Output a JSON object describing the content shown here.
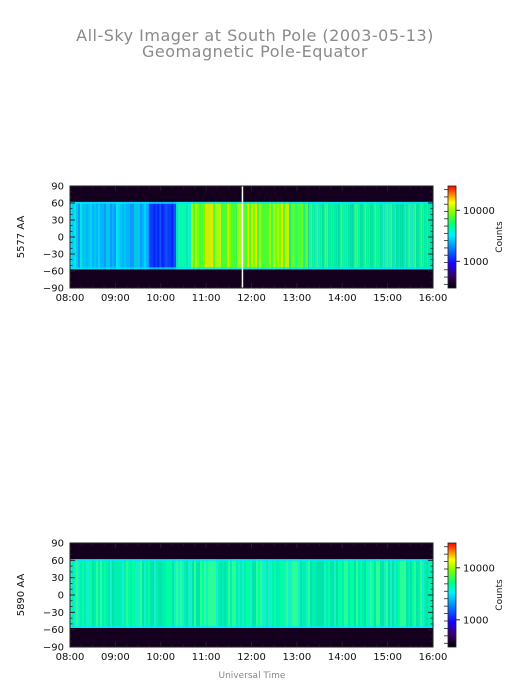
{
  "title": "All-Sky Imager at South Pole (2003-05-13)",
  "subtitle": "Geomagnetic Pole-Equator",
  "xlabel": "Universal Time",
  "colorbar_label": "Counts",
  "chart_data": [
    {
      "type": "heatmap",
      "ylabel": "5577 AA",
      "x_ticks": [
        "08:00",
        "09:00",
        "10:00",
        "11:00",
        "12:00",
        "13:00",
        "14:00",
        "15:00",
        "16:00"
      ],
      "y_ticks": [
        90,
        60,
        30,
        0,
        -30,
        -60,
        -90
      ],
      "xlim": [
        "08:00",
        "16:00"
      ],
      "ylim": [
        -90,
        90
      ],
      "colorbar_ticks": [
        1000,
        10000
      ],
      "colorbar_scale": "log",
      "data_lat_range": [
        -57,
        62
      ],
      "segments": [
        {
          "start": "08:00",
          "end": "09:45",
          "level": "cyan-blue"
        },
        {
          "start": "09:45",
          "end": "10:20",
          "level": "blue"
        },
        {
          "start": "10:20",
          "end": "10:40",
          "level": "cyan-green"
        },
        {
          "start": "10:40",
          "end": "12:50",
          "level": "green-yellow"
        },
        {
          "start": "12:50",
          "end": "13:15",
          "level": "green"
        },
        {
          "start": "13:15",
          "end": "16:00",
          "level": "cyan-green"
        }
      ],
      "gap_time": "11:47"
    },
    {
      "type": "heatmap",
      "ylabel": "5890 AA",
      "x_ticks": [
        "08:00",
        "09:00",
        "10:00",
        "11:00",
        "12:00",
        "13:00",
        "14:00",
        "15:00",
        "16:00"
      ],
      "y_ticks": [
        90,
        60,
        30,
        0,
        -30,
        -60,
        -90
      ],
      "xlim": [
        "08:00",
        "16:00"
      ],
      "ylim": [
        -90,
        90
      ],
      "colorbar_ticks": [
        1000,
        10000
      ],
      "colorbar_scale": "log",
      "data_lat_range": [
        -57,
        62
      ],
      "segments": [
        {
          "start": "08:00",
          "end": "16:00",
          "level": "cyan-green"
        }
      ]
    }
  ]
}
